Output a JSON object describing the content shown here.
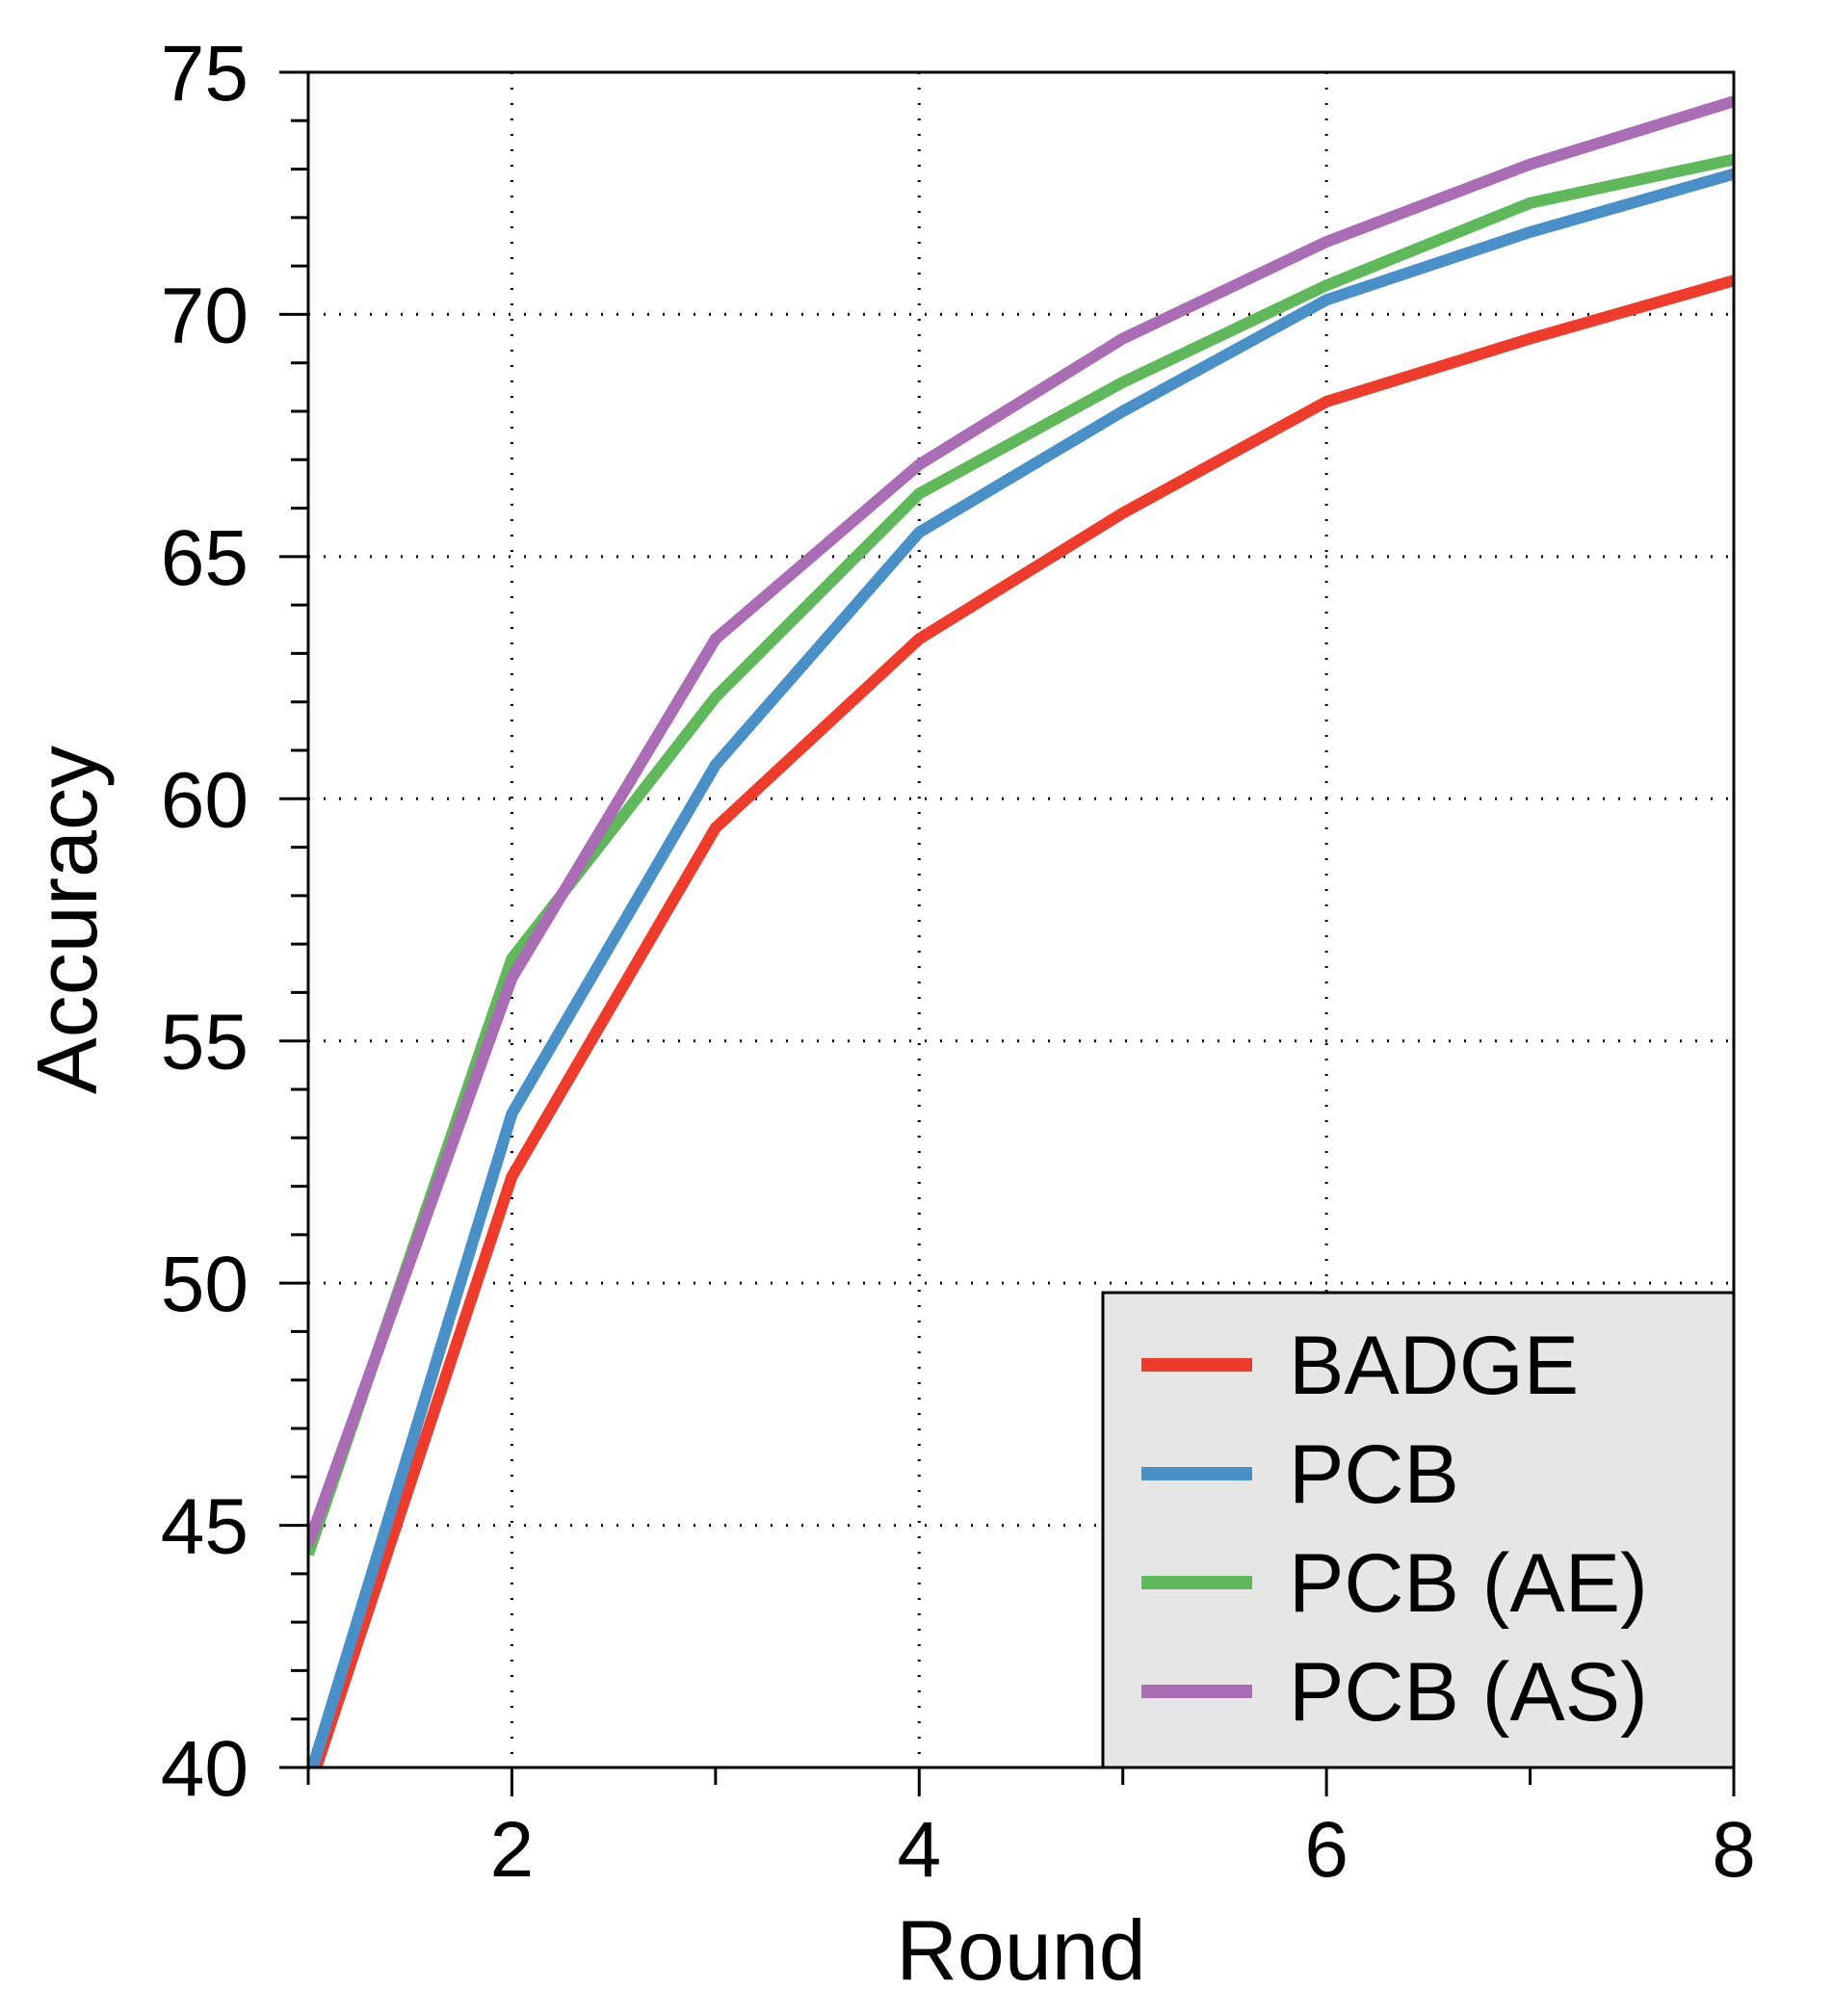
{
  "chart_data": {
    "type": "line",
    "title": "",
    "xlabel": "Round",
    "ylabel": "Accuracy",
    "xlim": [
      1,
      8
    ],
    "ylim": [
      40,
      75
    ],
    "x_ticks": [
      2,
      4,
      6,
      8
    ],
    "x_minor_ticks": [
      1,
      2,
      3,
      4,
      5,
      6,
      7,
      8
    ],
    "y_ticks": [
      40,
      45,
      50,
      55,
      60,
      65,
      70,
      75
    ],
    "y_minor_step": 1,
    "grid": true,
    "legend_position": "bottom-right",
    "x": [
      1,
      2,
      3,
      4,
      5,
      6,
      7,
      8
    ],
    "series": [
      {
        "name": "BADGE",
        "color": "#EE3B2B",
        "values": [
          39.5,
          52.2,
          59.4,
          63.3,
          65.9,
          68.2,
          69.5,
          70.7
        ]
      },
      {
        "name": "PCB",
        "color": "#4A90C8",
        "values": [
          39.7,
          53.5,
          60.7,
          65.5,
          68.0,
          70.3,
          71.7,
          72.9
        ]
      },
      {
        "name": "PCB (AE)",
        "color": "#5FB85A",
        "values": [
          44.4,
          56.7,
          62.1,
          66.3,
          68.6,
          70.6,
          72.3,
          73.2
        ]
      },
      {
        "name": "PCB (AS)",
        "color": "#A96CB5",
        "values": [
          44.6,
          56.3,
          63.3,
          66.9,
          69.5,
          71.5,
          73.1,
          74.4
        ]
      }
    ]
  }
}
